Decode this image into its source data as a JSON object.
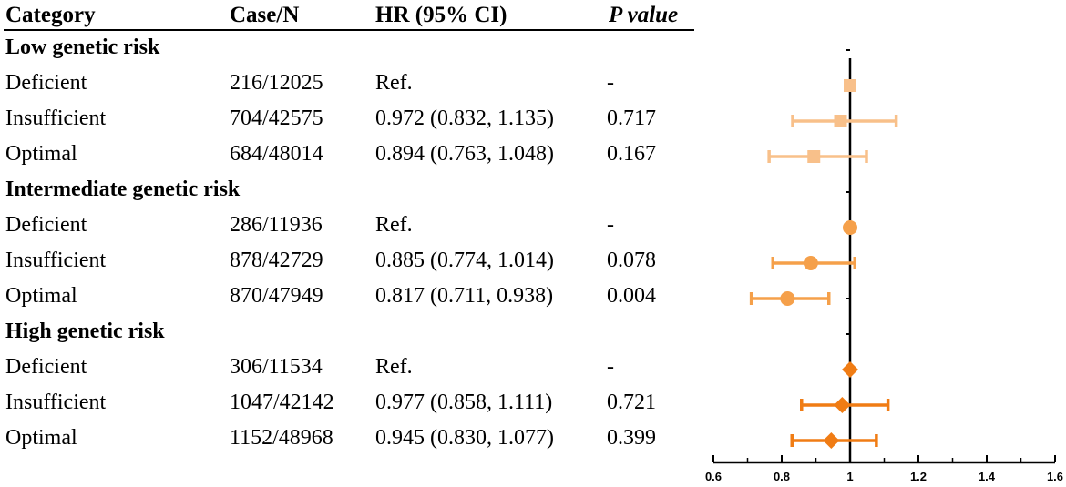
{
  "table": {
    "headers": [
      "Category",
      "Case/N",
      "HR (95% CI)",
      "P value"
    ],
    "groups": [
      {
        "label": "Low genetic risk",
        "rows": [
          {
            "category": "Deficient",
            "case_n": "216/12025",
            "hr_ci": "Ref.",
            "p": "-"
          },
          {
            "category": "Insufficient",
            "case_n": "704/42575",
            "hr_ci": "0.972 (0.832, 1.135)",
            "p": "0.717"
          },
          {
            "category": "Optimal",
            "case_n": "684/48014",
            "hr_ci": "0.894 (0.763, 1.048)",
            "p": "0.167"
          }
        ]
      },
      {
        "label": "Intermediate genetic risk",
        "rows": [
          {
            "category": "Deficient",
            "case_n": "286/11936",
            "hr_ci": "Ref.",
            "p": "-"
          },
          {
            "category": "Insufficient",
            "case_n": "878/42729",
            "hr_ci": "0.885 (0.774, 1.014)",
            "p": "0.078"
          },
          {
            "category": "Optimal",
            "case_n": "870/47949",
            "hr_ci": "0.817 (0.711, 0.938)",
            "p": "0.004"
          }
        ]
      },
      {
        "label": "High genetic risk",
        "rows": [
          {
            "category": "Deficient",
            "case_n": "306/11534",
            "hr_ci": "Ref.",
            "p": "-"
          },
          {
            "category": "Insufficient",
            "case_n": "1047/42142",
            "hr_ci": "0.977 (0.858, 1.111)",
            "p": "0.721"
          },
          {
            "category": "Optimal",
            "case_n": "1152/48968",
            "hr_ci": "0.945 (0.830, 1.077)",
            "p": "0.399"
          }
        ]
      }
    ]
  },
  "chart_data": {
    "type": "scatter",
    "subtype": "forest-plot",
    "xlim": [
      0.6,
      1.6
    ],
    "xticks": [
      "0.6",
      "0.8",
      "1",
      "1.2",
      "1.4",
      "1.6"
    ],
    "reference_line": 1,
    "grid": false,
    "series": [
      {
        "group": "Low genetic risk",
        "marker": "square",
        "color": "#F8C08A",
        "points": [
          {
            "category": "Deficient",
            "hr": 1.0,
            "lo": 1.0,
            "hi": 1.0
          },
          {
            "category": "Insufficient",
            "hr": 0.972,
            "lo": 0.832,
            "hi": 1.135
          },
          {
            "category": "Optimal",
            "hr": 0.894,
            "lo": 0.763,
            "hi": 1.048
          }
        ]
      },
      {
        "group": "Intermediate genetic risk",
        "marker": "circle",
        "color": "#F5A04A",
        "points": [
          {
            "category": "Deficient",
            "hr": 1.0,
            "lo": 1.0,
            "hi": 1.0
          },
          {
            "category": "Insufficient",
            "hr": 0.885,
            "lo": 0.774,
            "hi": 1.014
          },
          {
            "category": "Optimal",
            "hr": 0.817,
            "lo": 0.711,
            "hi": 0.938
          }
        ]
      },
      {
        "group": "High genetic risk",
        "marker": "diamond",
        "color": "#F07C14",
        "points": [
          {
            "category": "Deficient",
            "hr": 1.0,
            "lo": 1.0,
            "hi": 1.0
          },
          {
            "category": "Insufficient",
            "hr": 0.977,
            "lo": 0.858,
            "hi": 1.111
          },
          {
            "category": "Optimal",
            "hr": 0.945,
            "lo": 0.83,
            "hi": 1.077
          }
        ]
      }
    ]
  }
}
